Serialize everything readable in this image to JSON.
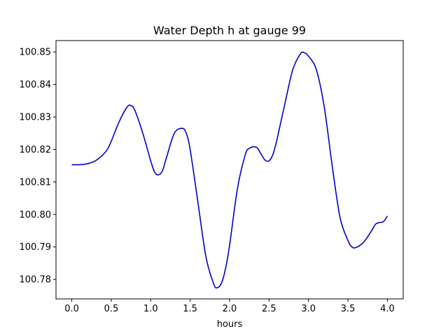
{
  "chart_data": {
    "type": "line",
    "title": "Water Depth h at gauge 99",
    "xlabel": "hours",
    "ylabel": "",
    "xlim": [
      -0.2,
      4.2
    ],
    "ylim": [
      100.774,
      100.8535
    ],
    "grid": false,
    "x_ticks": [
      0.0,
      0.5,
      1.0,
      1.5,
      2.0,
      2.5,
      3.0,
      3.5,
      4.0
    ],
    "x_tick_labels": [
      "0.0",
      "0.5",
      "1.0",
      "1.5",
      "2.0",
      "2.5",
      "3.0",
      "3.5",
      "4.0"
    ],
    "y_ticks": [
      100.78,
      100.79,
      100.8,
      100.81,
      100.82,
      100.83,
      100.84,
      100.85
    ],
    "y_tick_labels": [
      "100.78",
      "100.79",
      "100.80",
      "100.81",
      "100.82",
      "100.83",
      "100.84",
      "100.85"
    ],
    "series": [
      {
        "color": "#0000cc",
        "x": [
          0.0,
          0.1,
          0.2,
          0.3,
          0.4,
          0.45,
          0.5,
          0.6,
          0.7,
          0.75,
          0.8,
          0.9,
          1.0,
          1.05,
          1.1,
          1.15,
          1.2,
          1.3,
          1.4,
          1.45,
          1.5,
          1.6,
          1.7,
          1.8,
          1.85,
          1.9,
          1.95,
          2.0,
          2.1,
          2.2,
          2.25,
          2.3,
          2.35,
          2.4,
          2.45,
          2.5,
          2.55,
          2.6,
          2.7,
          2.8,
          2.9,
          2.95,
          3.0,
          3.1,
          3.2,
          3.3,
          3.4,
          3.5,
          3.55,
          3.6,
          3.7,
          3.8,
          3.85,
          3.9,
          3.95,
          4.0
        ],
        "y": [
          100.8153,
          100.8153,
          100.8156,
          100.8165,
          100.8185,
          100.82,
          100.8225,
          100.8285,
          100.833,
          100.8335,
          100.832,
          100.825,
          100.8165,
          100.813,
          100.8122,
          100.8135,
          100.8175,
          100.825,
          100.8265,
          100.825,
          100.82,
          100.8035,
          100.787,
          100.7785,
          100.7775,
          100.779,
          100.7835,
          100.7905,
          100.808,
          100.8185,
          100.8203,
          100.8208,
          100.8205,
          100.8185,
          100.8167,
          100.8165,
          100.8185,
          100.823,
          100.834,
          100.8445,
          100.8495,
          100.8497,
          100.8487,
          100.8445,
          100.833,
          100.815,
          100.799,
          100.792,
          100.79,
          100.7898,
          100.7915,
          100.795,
          100.797,
          100.7975,
          100.7978,
          100.7995
        ]
      }
    ]
  }
}
